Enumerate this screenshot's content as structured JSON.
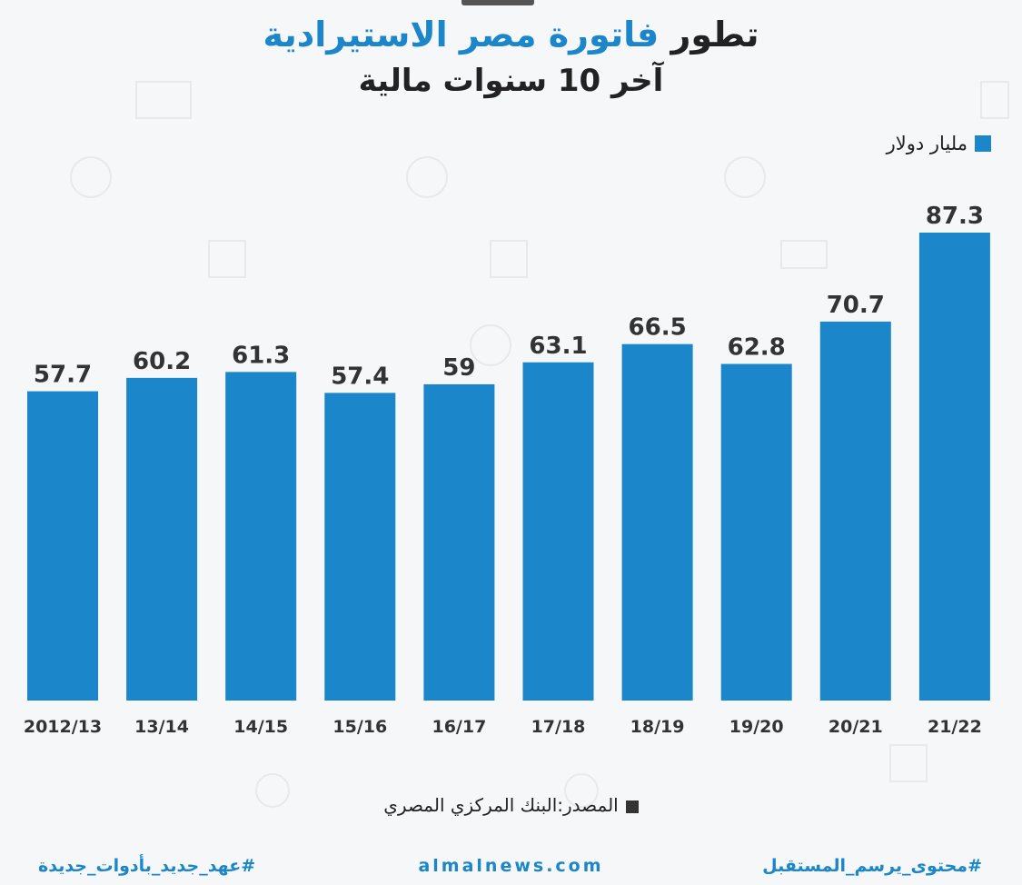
{
  "header": {
    "title_prefix": "تطور",
    "title_accent": "فاتورة مصر الاستيرادية",
    "subtitle": "آخر 10 سنوات مالية"
  },
  "legend": {
    "label": "مليار دولار"
  },
  "source": {
    "text": "المصدر:البنك المركزي المصري"
  },
  "footer": {
    "left": "#عهد_جديد_بأدوات_جديدة",
    "center": "almalnews.com",
    "right": "#محتوى_يرسم_المستقبل"
  },
  "colors": {
    "bar": "#1b86c9",
    "accent": "#1b86c9",
    "text": "#222222"
  },
  "chart_data": {
    "type": "bar",
    "title": "تطور فاتورة مصر الاستيرادية آخر 10 سنوات مالية",
    "categories": [
      "2012/13",
      "13/14",
      "14/15",
      "15/16",
      "16/17",
      "17/18",
      "18/19",
      "19/20",
      "20/21",
      "21/22"
    ],
    "series": [
      {
        "name": "مليار دولار",
        "values": [
          57.7,
          60.2,
          61.3,
          57.4,
          59,
          63.1,
          66.5,
          62.8,
          70.7,
          87.3
        ],
        "labels": [
          "57.7",
          "60.2",
          "61.3",
          "57.4",
          "59",
          "63.1",
          "66.5",
          "62.8",
          "70.7",
          "87.3"
        ]
      }
    ],
    "ylim": [
      0,
      87.3
    ],
    "grid": false,
    "legend_position": "top-right"
  }
}
